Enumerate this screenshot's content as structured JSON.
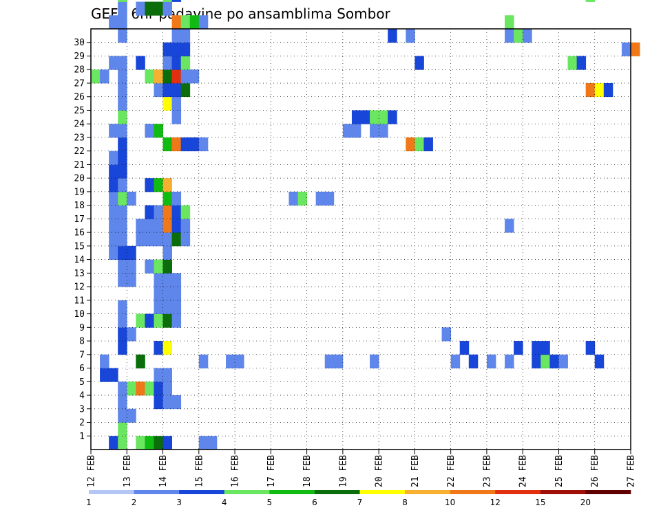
{
  "chart_data": {
    "type": "heatmap",
    "title": "GEFS 6hr padavine po ansamblima Sombor",
    "x_tick_labels": [
      "12 FEB",
      "13 FEB",
      "14 FEB",
      "15 FEB",
      "16 FEB",
      "17 FEB",
      "18 FEB",
      "19 FEB",
      "20 FEB",
      "21 FEB",
      "22 FEB",
      "23 FEB",
      "24 FEB",
      "25 FEB",
      "26 FEB",
      "27 FEB"
    ],
    "y_tick_labels": [
      "1",
      "2",
      "3",
      "4",
      "5",
      "6",
      "7",
      "8",
      "9",
      "10",
      "11",
      "12",
      "13",
      "14",
      "15",
      "16",
      "17",
      "18",
      "19",
      "20",
      "21",
      "22",
      "23",
      "24",
      "25",
      "26",
      "27",
      "28",
      "29",
      "30"
    ],
    "xlim": [
      "12 FEB",
      "27 FEB"
    ],
    "ylim": [
      0,
      30
    ],
    "grid": true,
    "steps_per_day": 4,
    "color_scale": {
      "labels": [
        "1",
        "2",
        "3",
        "4",
        "5",
        "6",
        "7",
        "8",
        "10",
        "12",
        "15",
        "20"
      ],
      "colors": [
        "#b4c6f5",
        "#5f86ea",
        "#1846d8",
        "#6ae660",
        "#12bb12",
        "#0b6e0b",
        "#ffff00",
        "#f8b030",
        "#f07818",
        "#e03010",
        "#a01008",
        "#600000"
      ]
    },
    "cells": [
      [
        0,
        2,
        2
      ],
      [
        0,
        3,
        3
      ],
      [
        0,
        5,
        3
      ],
      [
        0,
        6,
        4
      ],
      [
        0,
        7,
        5
      ],
      [
        0,
        8,
        2
      ],
      [
        0,
        12,
        1
      ],
      [
        0,
        13,
        1
      ],
      [
        1,
        3,
        3
      ],
      [
        2,
        3,
        1
      ],
      [
        2,
        4,
        1
      ],
      [
        3,
        3,
        1
      ],
      [
        3,
        7,
        2
      ],
      [
        3,
        8,
        1
      ],
      [
        3,
        9,
        1
      ],
      [
        4,
        3,
        1
      ],
      [
        4,
        4,
        3
      ],
      [
        4,
        5,
        8
      ],
      [
        4,
        6,
        3
      ],
      [
        4,
        7,
        2
      ],
      [
        4,
        8,
        1
      ],
      [
        5,
        1,
        2
      ],
      [
        5,
        2,
        2
      ],
      [
        5,
        7,
        1
      ],
      [
        5,
        8,
        1
      ],
      [
        6,
        1,
        1
      ],
      [
        6,
        5,
        5
      ],
      [
        6,
        12,
        1
      ],
      [
        6,
        15,
        1
      ],
      [
        6,
        16,
        1
      ],
      [
        6,
        26,
        1
      ],
      [
        6,
        27,
        1
      ],
      [
        6,
        31,
        1
      ],
      [
        6,
        40,
        1
      ],
      [
        6,
        42,
        2
      ],
      [
        6,
        44,
        1
      ],
      [
        6,
        46,
        1
      ],
      [
        6,
        49,
        2
      ],
      [
        6,
        50,
        3
      ],
      [
        6,
        51,
        2
      ],
      [
        6,
        52,
        1
      ],
      [
        6,
        56,
        2
      ],
      [
        7,
        3,
        2
      ],
      [
        7,
        7,
        2
      ],
      [
        7,
        8,
        6
      ],
      [
        7,
        41,
        2
      ],
      [
        7,
        47,
        2
      ],
      [
        7,
        49,
        2
      ],
      [
        7,
        50,
        2
      ],
      [
        7,
        55,
        2
      ],
      [
        8,
        3,
        2
      ],
      [
        8,
        4,
        1
      ],
      [
        8,
        39,
        1
      ],
      [
        9,
        3,
        1
      ],
      [
        9,
        5,
        3
      ],
      [
        9,
        6,
        2
      ],
      [
        9,
        7,
        3
      ],
      [
        9,
        8,
        5
      ],
      [
        9,
        9,
        1
      ],
      [
        10,
        3,
        1
      ],
      [
        10,
        7,
        1
      ],
      [
        10,
        8,
        1
      ],
      [
        10,
        9,
        1
      ],
      [
        11,
        7,
        1
      ],
      [
        11,
        8,
        1
      ],
      [
        11,
        9,
        1
      ],
      [
        12,
        3,
        1
      ],
      [
        12,
        4,
        1
      ],
      [
        12,
        7,
        1
      ],
      [
        12,
        8,
        1
      ],
      [
        12,
        9,
        1
      ],
      [
        13,
        3,
        1
      ],
      [
        13,
        4,
        1
      ],
      [
        13,
        6,
        1
      ],
      [
        13,
        7,
        3
      ],
      [
        13,
        8,
        5
      ],
      [
        14,
        2,
        1
      ],
      [
        14,
        3,
        2
      ],
      [
        14,
        4,
        2
      ],
      [
        14,
        8,
        1
      ],
      [
        15,
        2,
        1
      ],
      [
        15,
        3,
        1
      ],
      [
        15,
        5,
        1
      ],
      [
        15,
        6,
        1
      ],
      [
        15,
        7,
        1
      ],
      [
        15,
        8,
        1
      ],
      [
        15,
        9,
        5
      ],
      [
        15,
        10,
        1
      ],
      [
        16,
        2,
        1
      ],
      [
        16,
        3,
        1
      ],
      [
        16,
        5,
        1
      ],
      [
        16,
        6,
        1
      ],
      [
        16,
        7,
        1
      ],
      [
        16,
        8,
        8
      ],
      [
        16,
        9,
        2
      ],
      [
        16,
        10,
        1
      ],
      [
        16,
        46,
        1
      ],
      [
        17,
        2,
        1
      ],
      [
        17,
        3,
        1
      ],
      [
        17,
        6,
        2
      ],
      [
        17,
        7,
        1
      ],
      [
        17,
        8,
        8
      ],
      [
        17,
        9,
        2
      ],
      [
        17,
        10,
        3
      ],
      [
        18,
        2,
        1
      ],
      [
        18,
        3,
        3
      ],
      [
        18,
        4,
        1
      ],
      [
        18,
        8,
        4
      ],
      [
        18,
        9,
        1
      ],
      [
        18,
        22,
        1
      ],
      [
        18,
        23,
        3
      ],
      [
        18,
        25,
        1
      ],
      [
        18,
        26,
        1
      ],
      [
        19,
        2,
        2
      ],
      [
        19,
        3,
        1
      ],
      [
        19,
        6,
        2
      ],
      [
        19,
        7,
        4
      ],
      [
        19,
        8,
        7
      ],
      [
        20,
        2,
        2
      ],
      [
        20,
        3,
        2
      ],
      [
        21,
        2,
        1
      ],
      [
        21,
        3,
        2
      ],
      [
        22,
        3,
        2
      ],
      [
        22,
        8,
        4
      ],
      [
        22,
        9,
        8
      ],
      [
        22,
        10,
        2
      ],
      [
        22,
        11,
        2
      ],
      [
        22,
        12,
        1
      ],
      [
        22,
        35,
        8
      ],
      [
        22,
        36,
        3
      ],
      [
        22,
        37,
        2
      ],
      [
        23,
        2,
        1
      ],
      [
        23,
        3,
        1
      ],
      [
        23,
        6,
        1
      ],
      [
        23,
        7,
        4
      ],
      [
        23,
        28,
        1
      ],
      [
        23,
        29,
        1
      ],
      [
        23,
        31,
        1
      ],
      [
        23,
        32,
        1
      ],
      [
        24,
        3,
        3
      ],
      [
        24,
        9,
        1
      ],
      [
        24,
        29,
        2
      ],
      [
        24,
        30,
        2
      ],
      [
        24,
        31,
        3
      ],
      [
        24,
        32,
        3
      ],
      [
        24,
        33,
        2
      ],
      [
        25,
        3,
        1
      ],
      [
        25,
        8,
        6
      ],
      [
        25,
        9,
        1
      ],
      [
        26,
        3,
        1
      ],
      [
        26,
        7,
        1
      ],
      [
        26,
        8,
        2
      ],
      [
        26,
        9,
        2
      ],
      [
        26,
        10,
        5
      ],
      [
        26,
        55,
        8
      ],
      [
        26,
        56,
        6
      ],
      [
        26,
        57,
        2
      ],
      [
        27,
        0,
        3
      ],
      [
        27,
        1,
        1
      ],
      [
        27,
        3,
        1
      ],
      [
        27,
        6,
        3
      ],
      [
        27,
        7,
        7
      ],
      [
        27,
        8,
        5
      ],
      [
        27,
        9,
        9
      ],
      [
        27,
        10,
        1
      ],
      [
        27,
        11,
        1
      ],
      [
        28,
        2,
        1
      ],
      [
        28,
        3,
        1
      ],
      [
        28,
        5,
        2
      ],
      [
        28,
        8,
        1
      ],
      [
        28,
        9,
        2
      ],
      [
        28,
        10,
        3
      ],
      [
        28,
        36,
        2
      ],
      [
        28,
        53,
        3
      ],
      [
        28,
        54,
        2
      ],
      [
        29,
        8,
        2
      ],
      [
        29,
        9,
        2
      ],
      [
        29,
        10,
        2
      ],
      [
        29,
        59,
        1
      ],
      [
        29,
        60,
        8
      ],
      [
        30,
        3,
        1
      ],
      [
        30,
        9,
        1
      ],
      [
        30,
        10,
        1
      ],
      [
        30,
        33,
        2
      ],
      [
        30,
        35,
        1
      ],
      [
        30,
        46,
        1
      ],
      [
        30,
        47,
        3
      ],
      [
        30,
        48,
        1
      ],
      [
        31,
        2,
        1
      ],
      [
        31,
        3,
        1
      ],
      [
        31,
        9,
        8
      ],
      [
        31,
        10,
        3
      ],
      [
        31,
        11,
        4
      ],
      [
        31,
        12,
        1
      ],
      [
        31,
        46,
        3
      ],
      [
        32,
        3,
        1
      ],
      [
        32,
        5,
        1
      ],
      [
        32,
        6,
        5
      ],
      [
        32,
        7,
        5
      ],
      [
        32,
        8,
        1
      ],
      [
        33,
        3,
        3
      ],
      [
        33,
        8,
        3
      ],
      [
        33,
        9,
        2
      ],
      [
        33,
        55,
        3
      ]
    ]
  }
}
